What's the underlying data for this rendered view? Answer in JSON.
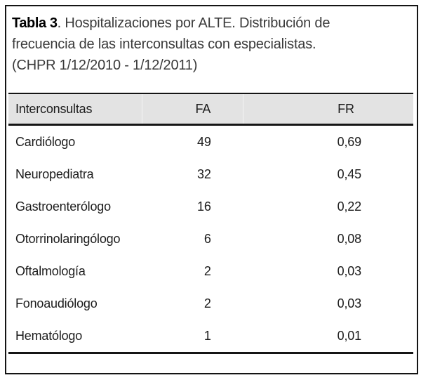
{
  "frame": {
    "background": "#ffffff",
    "border_color": "#141414"
  },
  "caption": {
    "label": "Tabla 3",
    "line1_rest": ". Hospitalizaciones por ALTE. Distribución de",
    "line2": "frecuencia de las interconsultas con especialistas.",
    "line3": "(CHPR 1/12/2010 - 1/12/2011)"
  },
  "chart_data": {
    "type": "table",
    "title": "Tabla 3. Hospitalizaciones por ALTE. Distribución de frecuencia de las interconsultas con especialistas. (CHPR 1/12/2010 - 1/12/2011)",
    "columns": [
      "Interconsultas",
      "FA",
      "FR"
    ],
    "rows": [
      [
        "Cardiólogo",
        "49",
        "0,69"
      ],
      [
        "Neuropediatra",
        "32",
        "0,45"
      ],
      [
        "Gastroenterólogo",
        "16",
        "0,22"
      ],
      [
        "Otorrinolaringólogo",
        "6",
        "0,08"
      ],
      [
        "Oftalmología",
        "2",
        "0,03"
      ],
      [
        "Fonoaudiólogo",
        "2",
        "0,03"
      ],
      [
        "Hematólogo",
        "1",
        "0,01"
      ]
    ],
    "header_bg": "#e3e3e3",
    "rule_color": "#151515"
  }
}
